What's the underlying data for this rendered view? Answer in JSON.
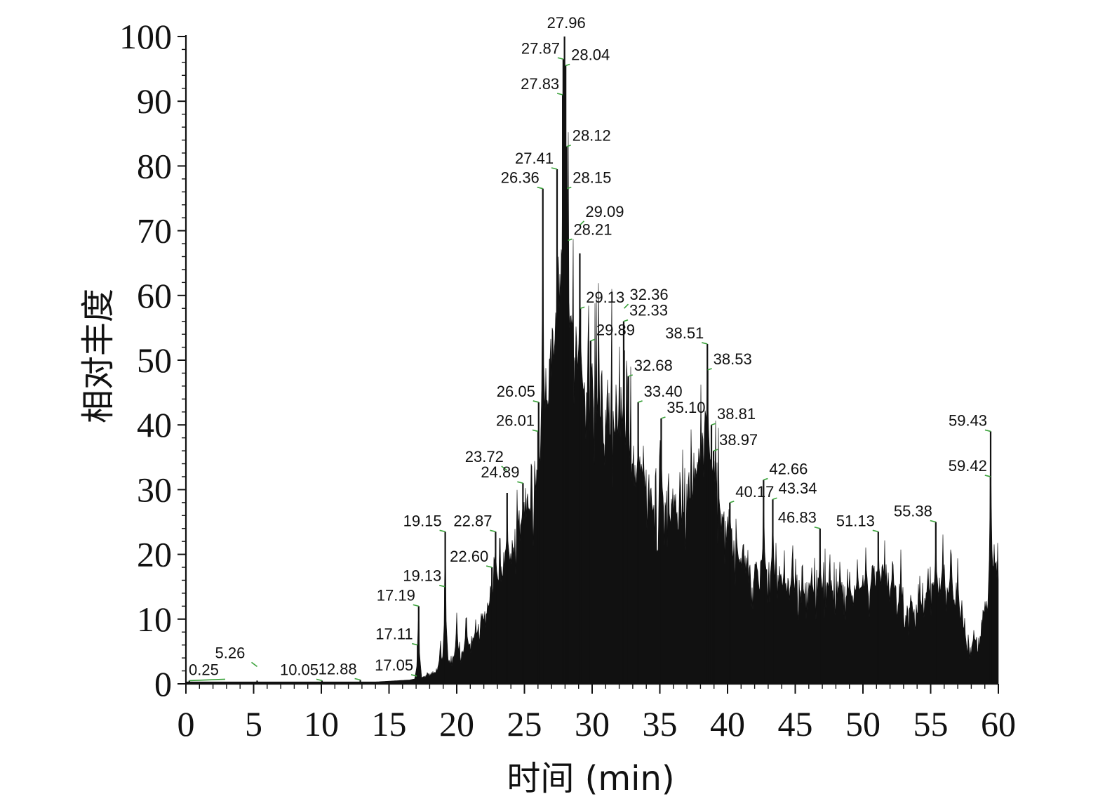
{
  "chart_data": {
    "type": "area",
    "title": "",
    "xlabel": "时间 (min)",
    "ylabel": "相对丰度",
    "xlim": [
      0,
      60
    ],
    "ylim": [
      0,
      100
    ],
    "x_ticks": [
      "0",
      "5",
      "10",
      "15",
      "20",
      "25",
      "30",
      "35",
      "40",
      "45",
      "50",
      "55",
      "60"
    ],
    "y_ticks": [
      "0",
      "10",
      "20",
      "30",
      "40",
      "50",
      "60",
      "70",
      "80",
      "90",
      "100"
    ],
    "fill_color": "#111111",
    "leader_color": "#3aa23a",
    "peaks": [
      {
        "label": "0.25",
        "x": 0.25,
        "y": 0.5
      },
      {
        "label": "5.26",
        "x": 5.26,
        "y": 0.5
      },
      {
        "label": "10.05",
        "x": 10.05,
        "y": 0.5
      },
      {
        "label": "12.88",
        "x": 12.88,
        "y": 0.6
      },
      {
        "label": "17.05",
        "x": 17.05,
        "y": 1.2
      },
      {
        "label": "17.11",
        "x": 17.11,
        "y": 6.0
      },
      {
        "label": "17.19",
        "x": 17.19,
        "y": 12.0
      },
      {
        "label": "19.13",
        "x": 19.13,
        "y": 15.0
      },
      {
        "label": "19.15",
        "x": 19.15,
        "y": 23.5
      },
      {
        "label": "22.60",
        "x": 22.6,
        "y": 18.0
      },
      {
        "label": "22.87",
        "x": 22.87,
        "y": 23.5
      },
      {
        "label": "23.72",
        "x": 23.72,
        "y": 29.5
      },
      {
        "label": "24.89",
        "x": 24.89,
        "y": 31.0
      },
      {
        "label": "26.01",
        "x": 26.01,
        "y": 39.0
      },
      {
        "label": "26.05",
        "x": 26.05,
        "y": 43.5
      },
      {
        "label": "26.36",
        "x": 26.36,
        "y": 76.5
      },
      {
        "label": "27.41",
        "x": 27.41,
        "y": 79.5
      },
      {
        "label": "27.83",
        "x": 27.83,
        "y": 91.0
      },
      {
        "label": "27.87",
        "x": 27.87,
        "y": 96.5
      },
      {
        "label": "27.96",
        "x": 27.96,
        "y": 100.0
      },
      {
        "label": "28.04",
        "x": 28.04,
        "y": 95.5
      },
      {
        "label": "28.12",
        "x": 28.12,
        "y": 83.0
      },
      {
        "label": "28.15",
        "x": 28.15,
        "y": 76.5
      },
      {
        "label": "28.21",
        "x": 28.21,
        "y": 68.5
      },
      {
        "label": "29.09",
        "x": 29.09,
        "y": 66.5
      },
      {
        "label": "29.13",
        "x": 29.13,
        "y": 58.0
      },
      {
        "label": "29.89",
        "x": 29.89,
        "y": 53.0
      },
      {
        "label": "32.33",
        "x": 32.33,
        "y": 56.0
      },
      {
        "label": "32.36",
        "x": 32.36,
        "y": 51.5
      },
      {
        "label": "32.68",
        "x": 32.68,
        "y": 47.5
      },
      {
        "label": "33.40",
        "x": 33.4,
        "y": 43.5
      },
      {
        "label": "35.10",
        "x": 35.1,
        "y": 41.0
      },
      {
        "label": "38.51",
        "x": 38.51,
        "y": 52.5
      },
      {
        "label": "38.53",
        "x": 38.53,
        "y": 48.5
      },
      {
        "label": "38.81",
        "x": 38.81,
        "y": 40.0
      },
      {
        "label": "38.97",
        "x": 38.97,
        "y": 36.0
      },
      {
        "label": "40.17",
        "x": 40.17,
        "y": 28.0
      },
      {
        "label": "42.66",
        "x": 42.66,
        "y": 31.5
      },
      {
        "label": "43.34",
        "x": 43.34,
        "y": 28.5
      },
      {
        "label": "46.83",
        "x": 46.83,
        "y": 24.0
      },
      {
        "label": "51.13",
        "x": 51.13,
        "y": 23.5
      },
      {
        "label": "55.38",
        "x": 55.38,
        "y": 25.0
      },
      {
        "label": "59.42",
        "x": 59.42,
        "y": 32.0
      },
      {
        "label": "59.43",
        "x": 59.43,
        "y": 39.0
      }
    ],
    "envelope": [
      [
        0,
        0.3
      ],
      [
        14,
        0.3
      ],
      [
        16.5,
        0.6
      ],
      [
        17.5,
        1.0
      ],
      [
        18.2,
        1.5
      ],
      [
        18.8,
        2.5
      ],
      [
        19.5,
        3.5
      ],
      [
        20.5,
        4.5
      ],
      [
        21.5,
        7.0
      ],
      [
        22.2,
        11.0
      ],
      [
        23,
        15.0
      ],
      [
        24,
        19.0
      ],
      [
        25,
        24.0
      ],
      [
        26,
        29.0
      ],
      [
        26.6,
        38.0
      ],
      [
        27.2,
        48.0
      ],
      [
        27.6,
        55.0
      ],
      [
        28.3,
        52.0
      ],
      [
        29,
        46.0
      ],
      [
        30,
        43.0
      ],
      [
        31,
        38.0
      ],
      [
        32,
        36.0
      ],
      [
        33,
        30.0
      ],
      [
        34,
        27.0
      ],
      [
        35,
        26.0
      ],
      [
        36,
        24.0
      ],
      [
        37,
        27.0
      ],
      [
        37.8,
        32.0
      ],
      [
        38.5,
        35.0
      ],
      [
        39.2,
        28.0
      ],
      [
        40,
        22.0
      ],
      [
        41,
        17.0
      ],
      [
        42,
        15.0
      ],
      [
        43,
        16.0
      ],
      [
        44,
        14.0
      ],
      [
        45,
        13.0
      ],
      [
        47,
        13.0
      ],
      [
        49,
        12.5
      ],
      [
        50.5,
        13.5
      ],
      [
        51.5,
        15.5
      ],
      [
        52.5,
        12.0
      ],
      [
        53.2,
        9.0
      ],
      [
        54,
        10.0
      ],
      [
        55,
        12.5
      ],
      [
        56,
        14.0
      ],
      [
        57,
        11.0
      ],
      [
        57.7,
        4.5
      ],
      [
        58.5,
        6.5
      ],
      [
        59.2,
        11.0
      ],
      [
        59.8,
        17.0
      ],
      [
        60,
        15.0
      ]
    ],
    "spikes": [
      [
        17.11,
        6.0
      ],
      [
        17.19,
        12.0
      ],
      [
        18.8,
        7.0
      ],
      [
        19.13,
        15.0
      ],
      [
        19.15,
        23.5
      ],
      [
        20.0,
        11.0
      ],
      [
        20.7,
        12.0
      ],
      [
        21.4,
        10.0
      ],
      [
        22.6,
        18.0
      ],
      [
        22.87,
        23.5
      ],
      [
        23.2,
        15.0
      ],
      [
        23.72,
        29.5
      ],
      [
        24.3,
        24.0
      ],
      [
        24.89,
        31.0
      ],
      [
        25.4,
        29.0
      ],
      [
        26.01,
        39.0
      ],
      [
        26.05,
        43.5
      ],
      [
        26.36,
        76.5
      ],
      [
        26.6,
        54.0
      ],
      [
        26.9,
        53.0
      ],
      [
        27.1,
        55.0
      ],
      [
        27.41,
        79.5
      ],
      [
        27.6,
        70.0
      ],
      [
        27.83,
        91.0
      ],
      [
        27.87,
        96.5
      ],
      [
        27.96,
        100.0
      ],
      [
        28.04,
        95.5
      ],
      [
        28.12,
        83.0
      ],
      [
        28.15,
        76.5
      ],
      [
        28.21,
        68.5
      ],
      [
        28.6,
        56.0
      ],
      [
        29.09,
        66.5
      ],
      [
        29.13,
        58.0
      ],
      [
        29.5,
        47.0
      ],
      [
        29.89,
        53.0
      ],
      [
        30.5,
        44.0
      ],
      [
        31.2,
        42.0
      ],
      [
        31.8,
        47.0
      ],
      [
        32.33,
        56.0
      ],
      [
        32.36,
        51.5
      ],
      [
        32.68,
        47.5
      ],
      [
        33.0,
        33.0
      ],
      [
        33.4,
        43.5
      ],
      [
        33.8,
        41.0
      ],
      [
        34.3,
        30.0
      ],
      [
        35.1,
        41.0
      ],
      [
        35.6,
        31.0
      ],
      [
        36.1,
        30.0
      ],
      [
        36.6,
        28.0
      ],
      [
        37.4,
        30.0
      ],
      [
        37.9,
        36.0
      ],
      [
        38.2,
        41.0
      ],
      [
        38.51,
        52.5
      ],
      [
        38.53,
        48.5
      ],
      [
        38.81,
        40.0
      ],
      [
        38.97,
        36.0
      ],
      [
        39.5,
        29.0
      ],
      [
        40.17,
        28.0
      ],
      [
        40.8,
        23.0
      ],
      [
        41.5,
        21.0
      ],
      [
        42.1,
        22.0
      ],
      [
        42.66,
        31.5
      ],
      [
        43.34,
        28.5
      ],
      [
        44.2,
        21.0
      ],
      [
        44.8,
        24.0
      ],
      [
        45.5,
        19.0
      ],
      [
        46.2,
        20.0
      ],
      [
        46.83,
        24.0
      ],
      [
        47.5,
        19.0
      ],
      [
        48.3,
        20.0
      ],
      [
        49.0,
        19.0
      ],
      [
        49.6,
        21.0
      ],
      [
        50.2,
        22.0
      ],
      [
        50.7,
        21.5
      ],
      [
        51.13,
        23.5
      ],
      [
        51.6,
        23.0
      ],
      [
        52.2,
        22.0
      ],
      [
        52.8,
        21.0
      ],
      [
        53.6,
        15.0
      ],
      [
        54.2,
        17.0
      ],
      [
        54.8,
        20.0
      ],
      [
        55.38,
        25.0
      ],
      [
        55.9,
        24.0
      ],
      [
        56.5,
        24.0
      ],
      [
        57.0,
        20.0
      ],
      [
        57.5,
        11.0
      ],
      [
        58.2,
        9.0
      ],
      [
        59.0,
        14.0
      ],
      [
        59.42,
        32.0
      ],
      [
        59.43,
        39.0
      ],
      [
        59.7,
        23.0
      ],
      [
        59.95,
        22.0
      ]
    ]
  }
}
